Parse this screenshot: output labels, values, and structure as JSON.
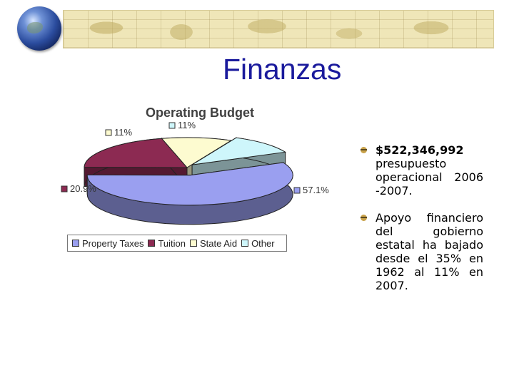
{
  "slide": {
    "title": "Finanzas"
  },
  "bullets": [
    {
      "strong": "$522,346,992",
      "text": "presupuesto operacional 2006 -2007."
    },
    {
      "strong": "",
      "text": "Apoyo financiero del gobierno estatal ha bajado desde el 35% en 1962 al 11% en 2007."
    }
  ],
  "chart_data": {
    "type": "pie",
    "title": "Operating Budget",
    "categories": [
      "Property Taxes",
      "Tuition",
      "State Aid",
      "Other"
    ],
    "values": [
      57.1,
      20.9,
      11,
      11
    ],
    "data_labels": [
      "57.1%",
      "20.9%",
      "11%",
      "11%"
    ],
    "colors": [
      "#9a9ff0",
      "#8c2a52",
      "#fdfbd0",
      "#cef6fb"
    ],
    "legend_position": "bottom",
    "exploded": true
  }
}
